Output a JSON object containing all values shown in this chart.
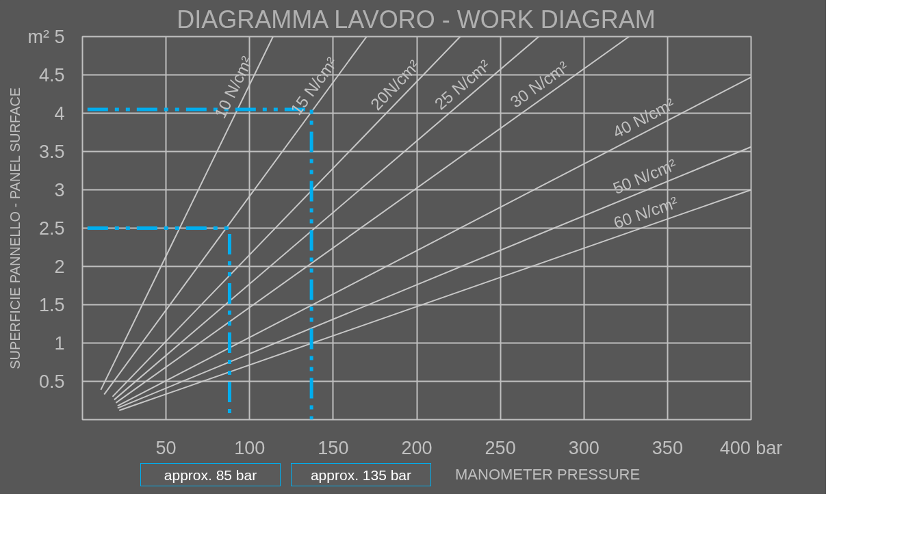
{
  "chart_data": {
    "type": "line",
    "title": "DIAGRAMMA LAVORO - WORK DIAGRAM",
    "xlabel": "MANOMETER PRESSURE",
    "ylabel": "SUPERFICIE PANNELLO - PANEL SURFACE",
    "xlim": [
      0,
      400
    ],
    "ylim": [
      0,
      5
    ],
    "xticks": [
      50,
      100,
      150,
      200,
      250,
      300,
      350,
      {
        "value": 400,
        "label": "400 bar"
      }
    ],
    "yticks": [
      0.5,
      1,
      1.5,
      2,
      2.5,
      3,
      3.5,
      4,
      4.5,
      {
        "value": 5,
        "label": "m² 5"
      }
    ],
    "grid": true,
    "marker": "none",
    "series": [
      {
        "name": "10 N/cm²",
        "color": "#c8c8c8",
        "x": [
          11,
          114
        ],
        "values": [
          0.39,
          5
        ]
      },
      {
        "name": "15 N/cm²",
        "color": "#c8c8c8",
        "x": [
          13,
          170
        ],
        "values": [
          0.33,
          5
        ]
      },
      {
        "name": "20N/cm²",
        "color": "#c8c8c8",
        "x": [
          18,
          226
        ],
        "values": [
          0.3,
          5
        ]
      },
      {
        "name": "25 N/cm²",
        "color": "#c8c8c8",
        "x": [
          19,
          273
        ],
        "values": [
          0.26,
          5
        ]
      },
      {
        "name": "30 N/cm²",
        "color": "#c8c8c8",
        "x": [
          20,
          327
        ],
        "values": [
          0.22,
          5
        ]
      },
      {
        "name": "40 N/cm²",
        "color": "#c8c8c8",
        "x": [
          21,
          400
        ],
        "values": [
          0.18,
          4.47
        ]
      },
      {
        "name": "50 N/cm²",
        "color": "#c8c8c8",
        "x": [
          21,
          400
        ],
        "values": [
          0.15,
          3.56
        ]
      },
      {
        "name": "60 N/cm²",
        "color": "#c8c8c8",
        "x": [
          22,
          400
        ],
        "values": [
          0.12,
          3.0
        ]
      },
      {
        "color": "#00aeef",
        "line_style": "dashed",
        "x": [
          3,
          137,
          137
        ],
        "values": [
          4.05,
          4.05,
          0
        ]
      },
      {
        "color": "#00aeef",
        "line_style": "dashed",
        "x": [
          3,
          88,
          88
        ],
        "values": [
          2.5,
          2.5,
          0
        ]
      }
    ],
    "annotations": [
      "approx. 85 bar",
      "approx. 135 bar"
    ]
  }
}
